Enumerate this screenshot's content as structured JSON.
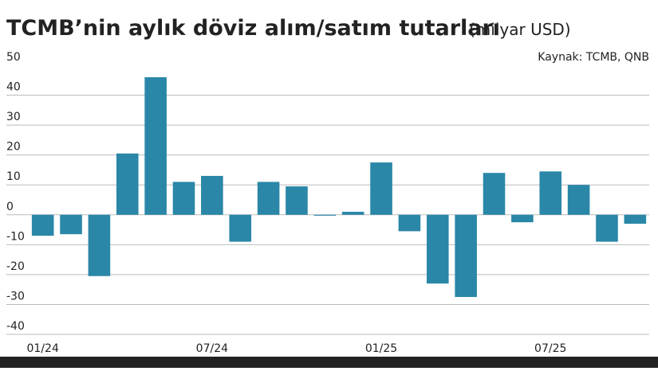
{
  "chart_data": {
    "type": "bar",
    "title": "TCMB’nin aylık döviz alım/satım tutarları",
    "subtitle": "(milyar USD)",
    "source": "Kaynak: TCMB, QNB",
    "categories": [
      "01/24",
      null,
      null,
      null,
      null,
      null,
      "07/24",
      null,
      null,
      null,
      null,
      null,
      "01/25",
      null,
      null,
      null,
      null,
      null,
      "07/25",
      null,
      null,
      null
    ],
    "values": [
      -7,
      -6.5,
      -20.5,
      20.5,
      46,
      11,
      13,
      -9,
      11,
      9.5,
      -0.3,
      1,
      17.5,
      -5.5,
      -23,
      -27.5,
      14,
      -2.5,
      14.5,
      10,
      -9,
      -3
    ],
    "color": "#2a87a8",
    "ylim": [
      -40,
      50
    ],
    "yticks": [
      -40,
      -30,
      -20,
      -10,
      0,
      10,
      20,
      30,
      40,
      50
    ],
    "grid": true
  }
}
